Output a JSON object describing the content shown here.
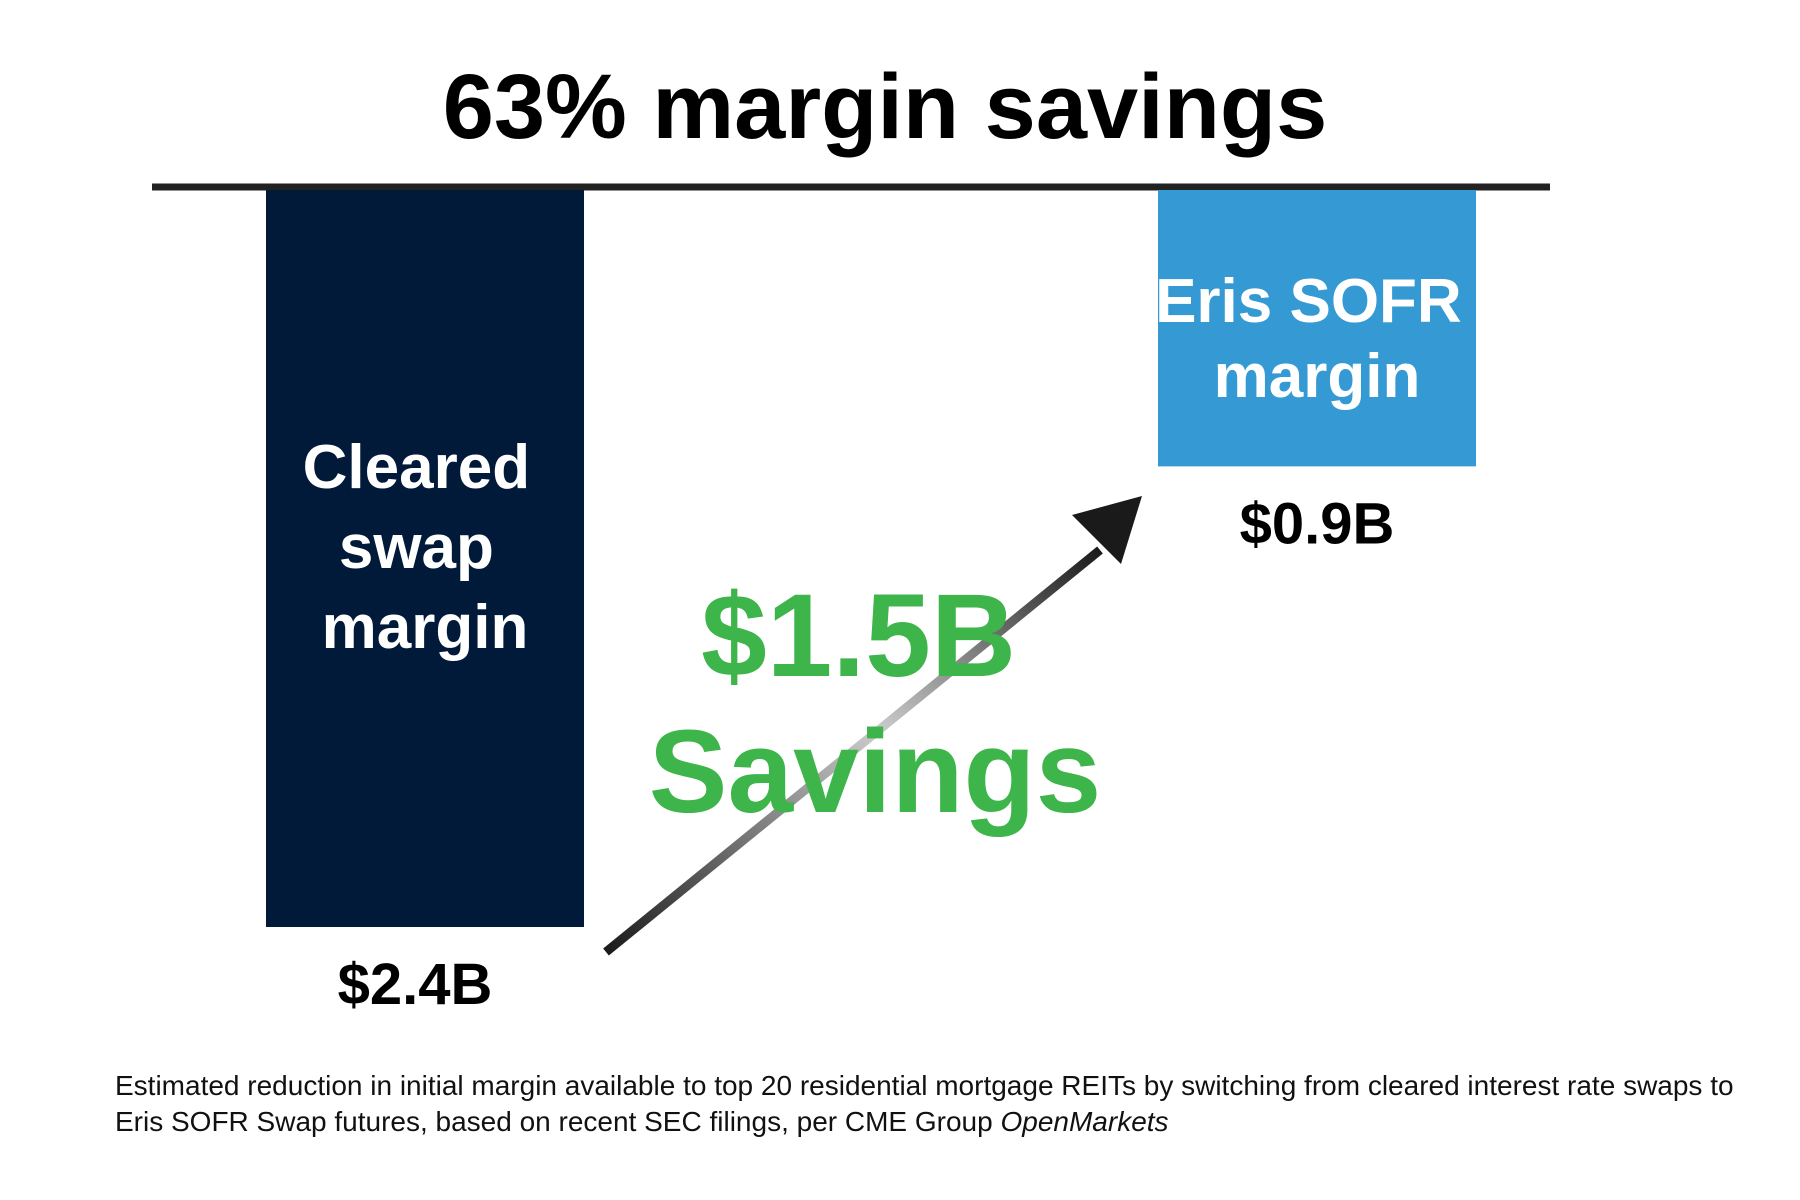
{
  "chart_data": {
    "type": "bar",
    "title": "63% margin savings",
    "orientation": "hanging",
    "categories": [
      "Cleared swap margin",
      "Eris SOFR margin"
    ],
    "category_lines": [
      [
        "Cleared",
        "swap",
        "margin"
      ],
      [
        "Eris SOFR",
        "margin"
      ]
    ],
    "values": [
      2.4,
      0.9
    ],
    "value_labels": [
      "$2.4B",
      "$0.9B"
    ],
    "unit": "$B",
    "ylim": [
      0,
      2.4
    ],
    "grid": false,
    "legend": "none",
    "annotation": {
      "lines": [
        "$1.5B",
        "Savings"
      ],
      "value": 1.5,
      "color": "#3db54a"
    },
    "colors": {
      "bar_cleared": "#021a3a",
      "bar_eris": "#3599d4",
      "baseline": "#222222",
      "arrow": "#1a1a1a",
      "arrow_highlight": "#cccccc"
    }
  },
  "footnote": {
    "text": "Estimated reduction in initial margin available to top 20 residential mortgage REITs by switching from cleared interest rate swaps to Eris SOFR Swap futures, based on recent SEC filings, per CME Group",
    "source_italic": "OpenMarkets"
  }
}
